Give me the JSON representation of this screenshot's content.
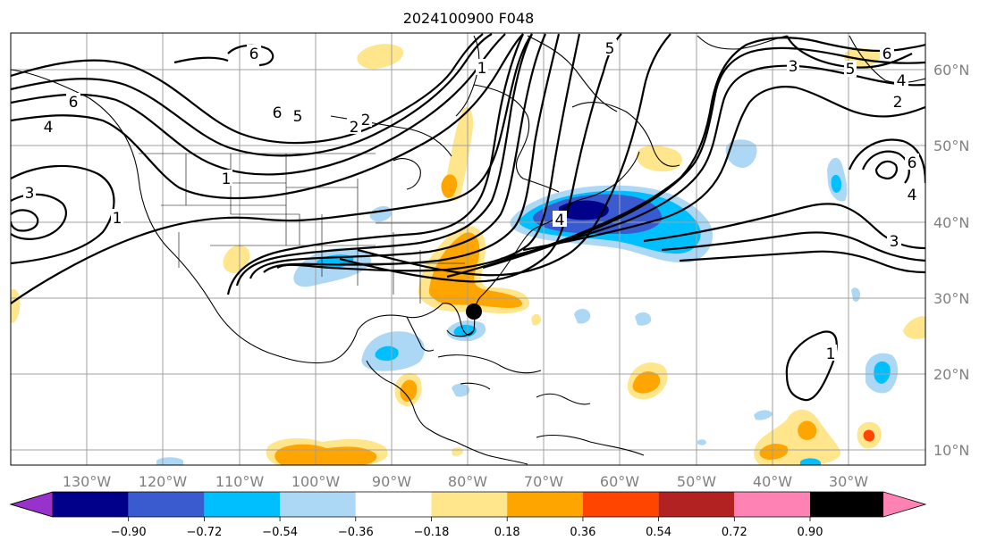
{
  "title": "2024100900 F048",
  "lon_ticks": [
    "130°W",
    "120°W",
    "110°W",
    "100°W",
    "90°W",
    "80°W",
    "70°W",
    "60°W",
    "50°W",
    "40°W",
    "30°W"
  ],
  "lat_ticks": [
    "60°N",
    "50°N",
    "40°N",
    "30°N",
    "20°N",
    "10°N"
  ],
  "colorbar": {
    "colors": [
      "#9932cc",
      "#00008b",
      "#3a5bd0",
      "#00bfff",
      "#add8f5",
      "#ffffff",
      "#ffe68c",
      "#ffa500",
      "#ff4500",
      "#b22222",
      "#ff82b4"
    ],
    "labels": [
      "−0.90",
      "−0.72",
      "−0.54",
      "−0.36",
      "−0.18",
      "0.18",
      "0.36",
      "0.54",
      "0.72",
      "0.90"
    ]
  },
  "contour_labels": [
    "6",
    "6",
    "5",
    "5",
    "4",
    "1",
    "1",
    "2",
    "2",
    "3",
    "6",
    "6",
    "4",
    "5",
    "2",
    "3",
    "1",
    "4",
    "3",
    "6",
    "4",
    "1"
  ],
  "marker": "storm-center-dot"
}
